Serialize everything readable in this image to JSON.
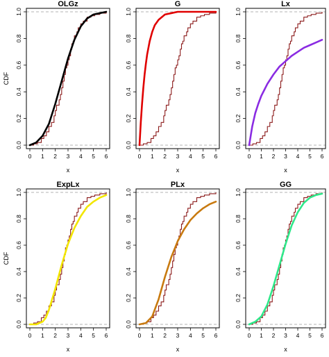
{
  "figure": {
    "ylabel": "CDF",
    "xlabel": "x"
  },
  "chart_data": [
    {
      "type": "line",
      "title": "OLGz",
      "xlabel": "x",
      "ylabel": "CDF",
      "xlim": [
        0,
        6
      ],
      "ylim": [
        0,
        1
      ],
      "xticks": [
        "0",
        "1",
        "2",
        "3",
        "4",
        "5",
        "6"
      ],
      "yticks": [
        "0.0",
        "0.2",
        "0.4",
        "0.6",
        "0.8",
        "1.0"
      ],
      "grid": false,
      "series": [
        {
          "kind": "empirical",
          "color": "#8b1a1a",
          "x": [
            0.3,
            0.6,
            0.9,
            1.1,
            1.3,
            1.5,
            1.7,
            1.9,
            2.0,
            2.1,
            2.3,
            2.4,
            2.5,
            2.6,
            2.7,
            2.8,
            2.9,
            3.0,
            3.1,
            3.2,
            3.3,
            3.4,
            3.5,
            3.7,
            3.8,
            4.0,
            4.2,
            4.5,
            4.8,
            5.1,
            5.5,
            6.0
          ],
          "y": [
            0.01,
            0.02,
            0.05,
            0.07,
            0.1,
            0.14,
            0.17,
            0.22,
            0.26,
            0.3,
            0.34,
            0.38,
            0.43,
            0.48,
            0.53,
            0.58,
            0.6,
            0.64,
            0.67,
            0.72,
            0.76,
            0.78,
            0.82,
            0.85,
            0.88,
            0.91,
            0.93,
            0.96,
            0.97,
            0.98,
            0.99,
            1.0
          ]
        },
        {
          "kind": "fitted",
          "color": "#000000",
          "x": [
            0,
            0.5,
            1.0,
            1.5,
            2.0,
            2.5,
            3.0,
            3.5,
            4.0,
            4.5,
            5.0,
            5.5,
            6.0
          ],
          "y": [
            0.0,
            0.02,
            0.07,
            0.16,
            0.31,
            0.48,
            0.65,
            0.79,
            0.89,
            0.95,
            0.98,
            0.99,
            1.0
          ]
        }
      ]
    },
    {
      "type": "line",
      "title": "G",
      "xlabel": "x",
      "ylabel": "",
      "xlim": [
        0,
        6
      ],
      "ylim": [
        0,
        1
      ],
      "xticks": [
        "0",
        "1",
        "2",
        "3",
        "4",
        "5",
        "6"
      ],
      "yticks": [
        "0.0",
        "0.2",
        "0.4",
        "0.6",
        "0.8",
        "1.0"
      ],
      "grid": false,
      "series": [
        {
          "kind": "empirical",
          "color": "#8b1a1a",
          "x": [
            0.3,
            0.6,
            0.9,
            1.1,
            1.3,
            1.5,
            1.7,
            1.9,
            2.0,
            2.1,
            2.3,
            2.4,
            2.5,
            2.6,
            2.7,
            2.8,
            2.9,
            3.0,
            3.1,
            3.2,
            3.3,
            3.4,
            3.5,
            3.7,
            3.8,
            4.0,
            4.2,
            4.5,
            4.8,
            5.1,
            5.5,
            6.0
          ],
          "y": [
            0.01,
            0.02,
            0.05,
            0.07,
            0.1,
            0.14,
            0.17,
            0.22,
            0.26,
            0.3,
            0.34,
            0.38,
            0.43,
            0.48,
            0.53,
            0.58,
            0.6,
            0.64,
            0.67,
            0.72,
            0.76,
            0.78,
            0.82,
            0.85,
            0.88,
            0.91,
            0.93,
            0.96,
            0.97,
            0.98,
            0.99,
            1.0
          ]
        },
        {
          "kind": "fitted",
          "color": "#e00000",
          "x": [
            0,
            0.1,
            0.2,
            0.3,
            0.4,
            0.5,
            0.6,
            0.8,
            1.0,
            1.2,
            1.5,
            2.0,
            2.5,
            3.0,
            4.0,
            5.0,
            6.0
          ],
          "y": [
            0.0,
            0.17,
            0.31,
            0.43,
            0.53,
            0.61,
            0.68,
            0.78,
            0.85,
            0.9,
            0.94,
            0.98,
            0.99,
            1.0,
            1.0,
            1.0,
            1.0
          ]
        }
      ]
    },
    {
      "type": "line",
      "title": "Lx",
      "xlabel": "x",
      "ylabel": "",
      "xlim": [
        0,
        6
      ],
      "ylim": [
        0,
        1
      ],
      "xticks": [
        "0",
        "1",
        "2",
        "3",
        "4",
        "5",
        "6"
      ],
      "yticks": [
        "0.0",
        "0.2",
        "0.4",
        "0.6",
        "0.8",
        "1.0"
      ],
      "grid": false,
      "series": [
        {
          "kind": "empirical",
          "color": "#8b1a1a",
          "x": [
            0.3,
            0.6,
            0.9,
            1.1,
            1.3,
            1.5,
            1.7,
            1.9,
            2.0,
            2.1,
            2.3,
            2.4,
            2.5,
            2.6,
            2.7,
            2.8,
            2.9,
            3.0,
            3.1,
            3.2,
            3.3,
            3.4,
            3.5,
            3.7,
            3.8,
            4.0,
            4.2,
            4.5,
            4.8,
            5.1,
            5.5,
            6.0
          ],
          "y": [
            0.01,
            0.02,
            0.05,
            0.07,
            0.1,
            0.14,
            0.17,
            0.22,
            0.26,
            0.3,
            0.34,
            0.38,
            0.43,
            0.48,
            0.53,
            0.58,
            0.6,
            0.64,
            0.67,
            0.72,
            0.76,
            0.78,
            0.82,
            0.85,
            0.88,
            0.91,
            0.93,
            0.96,
            0.97,
            0.98,
            0.99,
            1.0
          ]
        },
        {
          "kind": "fitted",
          "color": "#8a2be2",
          "x": [
            0,
            0.25,
            0.5,
            0.75,
            1.0,
            1.5,
            2.0,
            2.5,
            3.0,
            3.5,
            4.0,
            4.5,
            5.0,
            5.5,
            6.0
          ],
          "y": [
            0.0,
            0.14,
            0.24,
            0.31,
            0.37,
            0.46,
            0.53,
            0.59,
            0.63,
            0.67,
            0.7,
            0.73,
            0.75,
            0.77,
            0.79
          ]
        }
      ]
    },
    {
      "type": "line",
      "title": "ExpLx",
      "xlabel": "x",
      "ylabel": "CDF",
      "xlim": [
        0,
        6
      ],
      "ylim": [
        0,
        1
      ],
      "xticks": [
        "0",
        "1",
        "2",
        "3",
        "4",
        "5",
        "6"
      ],
      "yticks": [
        "0.0",
        "0.2",
        "0.4",
        "0.6",
        "0.8",
        "1.0"
      ],
      "grid": false,
      "series": [
        {
          "kind": "empirical",
          "color": "#8b1a1a",
          "x": [
            0.3,
            0.6,
            0.9,
            1.1,
            1.3,
            1.5,
            1.7,
            1.9,
            2.0,
            2.1,
            2.3,
            2.4,
            2.5,
            2.6,
            2.7,
            2.8,
            2.9,
            3.0,
            3.1,
            3.2,
            3.3,
            3.4,
            3.5,
            3.7,
            3.8,
            4.0,
            4.2,
            4.5,
            4.8,
            5.1,
            5.5,
            6.0
          ],
          "y": [
            0.01,
            0.02,
            0.05,
            0.07,
            0.1,
            0.14,
            0.17,
            0.22,
            0.26,
            0.3,
            0.34,
            0.38,
            0.43,
            0.48,
            0.53,
            0.58,
            0.6,
            0.64,
            0.67,
            0.72,
            0.76,
            0.78,
            0.82,
            0.85,
            0.88,
            0.91,
            0.93,
            0.96,
            0.97,
            0.98,
            0.99,
            1.0
          ]
        },
        {
          "kind": "fitted",
          "color": "#f2e600",
          "x": [
            0,
            0.5,
            1.0,
            1.25,
            1.5,
            2.0,
            2.5,
            3.0,
            3.5,
            4.0,
            4.5,
            5.0,
            5.5,
            6.0
          ],
          "y": [
            0.0,
            0.0,
            0.02,
            0.05,
            0.11,
            0.27,
            0.45,
            0.61,
            0.73,
            0.82,
            0.89,
            0.93,
            0.96,
            0.98
          ]
        }
      ]
    },
    {
      "type": "line",
      "title": "PLx",
      "xlabel": "x",
      "ylabel": "",
      "xlim": [
        0,
        6
      ],
      "ylim": [
        0,
        1
      ],
      "xticks": [
        "0",
        "1",
        "2",
        "3",
        "4",
        "5",
        "6"
      ],
      "yticks": [
        "0.0",
        "0.2",
        "0.4",
        "0.6",
        "0.8",
        "1.0"
      ],
      "grid": false,
      "series": [
        {
          "kind": "empirical",
          "color": "#8b1a1a",
          "x": [
            0.3,
            0.6,
            0.9,
            1.1,
            1.3,
            1.5,
            1.7,
            1.9,
            2.0,
            2.1,
            2.3,
            2.4,
            2.5,
            2.6,
            2.7,
            2.8,
            2.9,
            3.0,
            3.1,
            3.2,
            3.3,
            3.4,
            3.5,
            3.7,
            3.8,
            4.0,
            4.2,
            4.5,
            4.8,
            5.1,
            5.5,
            6.0
          ],
          "y": [
            0.01,
            0.02,
            0.05,
            0.07,
            0.1,
            0.14,
            0.17,
            0.22,
            0.26,
            0.3,
            0.34,
            0.38,
            0.43,
            0.48,
            0.53,
            0.58,
            0.6,
            0.64,
            0.67,
            0.72,
            0.76,
            0.78,
            0.82,
            0.85,
            0.88,
            0.91,
            0.93,
            0.96,
            0.97,
            0.98,
            0.99,
            1.0
          ]
        },
        {
          "kind": "fitted",
          "color": "#c87a10",
          "x": [
            0,
            0.5,
            1.0,
            1.5,
            2.0,
            2.5,
            3.0,
            3.5,
            4.0,
            4.5,
            5.0,
            5.5,
            6.0
          ],
          "y": [
            0.0,
            0.01,
            0.06,
            0.19,
            0.36,
            0.51,
            0.63,
            0.72,
            0.79,
            0.84,
            0.88,
            0.91,
            0.93
          ]
        }
      ]
    },
    {
      "type": "line",
      "title": "GG",
      "xlabel": "x",
      "ylabel": "",
      "xlim": [
        0,
        6
      ],
      "ylim": [
        0,
        1
      ],
      "xticks": [
        "0",
        "1",
        "2",
        "3",
        "4",
        "5",
        "6"
      ],
      "yticks": [
        "0.0",
        "0.2",
        "0.4",
        "0.6",
        "0.8",
        "1.0"
      ],
      "grid": false,
      "series": [
        {
          "kind": "empirical",
          "color": "#8b1a1a",
          "x": [
            0.3,
            0.6,
            0.9,
            1.1,
            1.3,
            1.5,
            1.7,
            1.9,
            2.0,
            2.1,
            2.3,
            2.4,
            2.5,
            2.6,
            2.7,
            2.8,
            2.9,
            3.0,
            3.1,
            3.2,
            3.3,
            3.4,
            3.5,
            3.7,
            3.8,
            4.0,
            4.2,
            4.5,
            4.8,
            5.1,
            5.5,
            6.0
          ],
          "y": [
            0.01,
            0.02,
            0.05,
            0.07,
            0.1,
            0.14,
            0.17,
            0.22,
            0.26,
            0.3,
            0.34,
            0.38,
            0.43,
            0.48,
            0.53,
            0.58,
            0.6,
            0.64,
            0.67,
            0.72,
            0.76,
            0.78,
            0.82,
            0.85,
            0.88,
            0.91,
            0.93,
            0.96,
            0.97,
            0.98,
            0.99,
            1.0
          ]
        },
        {
          "kind": "fitted",
          "color": "#2ee88a",
          "x": [
            0,
            0.5,
            1.0,
            1.5,
            2.0,
            2.5,
            3.0,
            3.5,
            4.0,
            4.5,
            5.0,
            5.5,
            6.0
          ],
          "y": [
            0.0,
            0.02,
            0.06,
            0.15,
            0.29,
            0.45,
            0.61,
            0.75,
            0.85,
            0.92,
            0.96,
            0.98,
            0.99
          ]
        }
      ]
    }
  ]
}
